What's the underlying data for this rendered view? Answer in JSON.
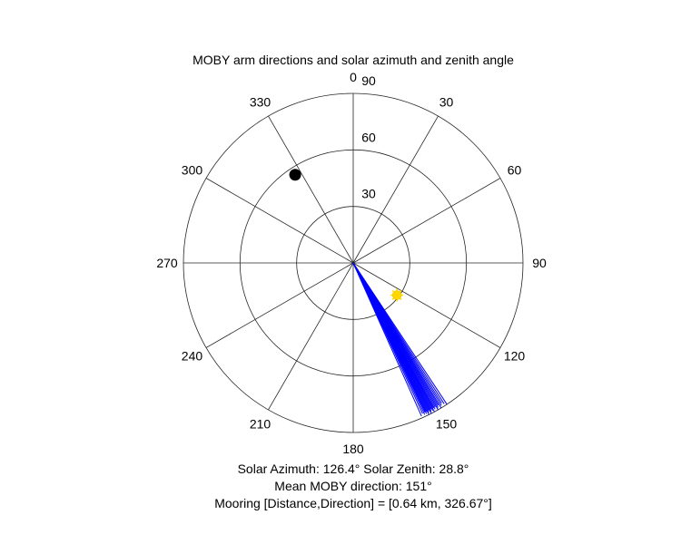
{
  "chart_data": {
    "type": "polar",
    "title": "MOBY arm directions and solar azimuth and zenith angle",
    "theta_zero": "top",
    "theta_direction": "clockwise",
    "theta_ticks": [
      0,
      30,
      60,
      90,
      120,
      150,
      180,
      210,
      240,
      270,
      300,
      330
    ],
    "theta_tick_labels": [
      "0",
      "30",
      "60",
      "90",
      "120",
      "150",
      "180",
      "210",
      "240",
      "270",
      "300",
      "330"
    ],
    "r_range": [
      0,
      90
    ],
    "r_ticks": [
      30,
      60,
      90
    ],
    "r_tick_labels": [
      "30",
      "60",
      "90"
    ],
    "grid": true,
    "series": [
      {
        "kind": "lines",
        "color": "#0000ff",
        "directions_deg": [
          146.5,
          147.2,
          147.8,
          148.3,
          148.8,
          149.2,
          149.6,
          150.0,
          150.4,
          150.8,
          151.1,
          151.4,
          151.7,
          152.0,
          152.3,
          152.6,
          152.9,
          153.2,
          153.5,
          153.8,
          154.1,
          154.4,
          154.8,
          155.3,
          156.0
        ],
        "lengths": [
          90,
          89,
          88,
          89,
          90,
          88,
          89,
          90,
          88,
          89,
          88,
          90,
          89,
          88,
          89,
          90,
          88,
          89,
          90,
          88,
          89,
          88,
          89,
          88,
          89
        ]
      },
      {
        "kind": "point",
        "label": "sun",
        "color": "#ffd700",
        "azimuth_deg": 126.4,
        "zenith_deg": 28.8
      },
      {
        "kind": "point",
        "label": "mooring",
        "color": "#000000",
        "azimuth_deg": 326.67,
        "r": 56
      }
    ],
    "captions": [
      "Solar Azimuth: 126.4°    Solar Zenith: 28.8°",
      "Mean MOBY direction: 151°",
      "Mooring [Distance,Direction] = [0.64 km, 326.67°]"
    ]
  }
}
